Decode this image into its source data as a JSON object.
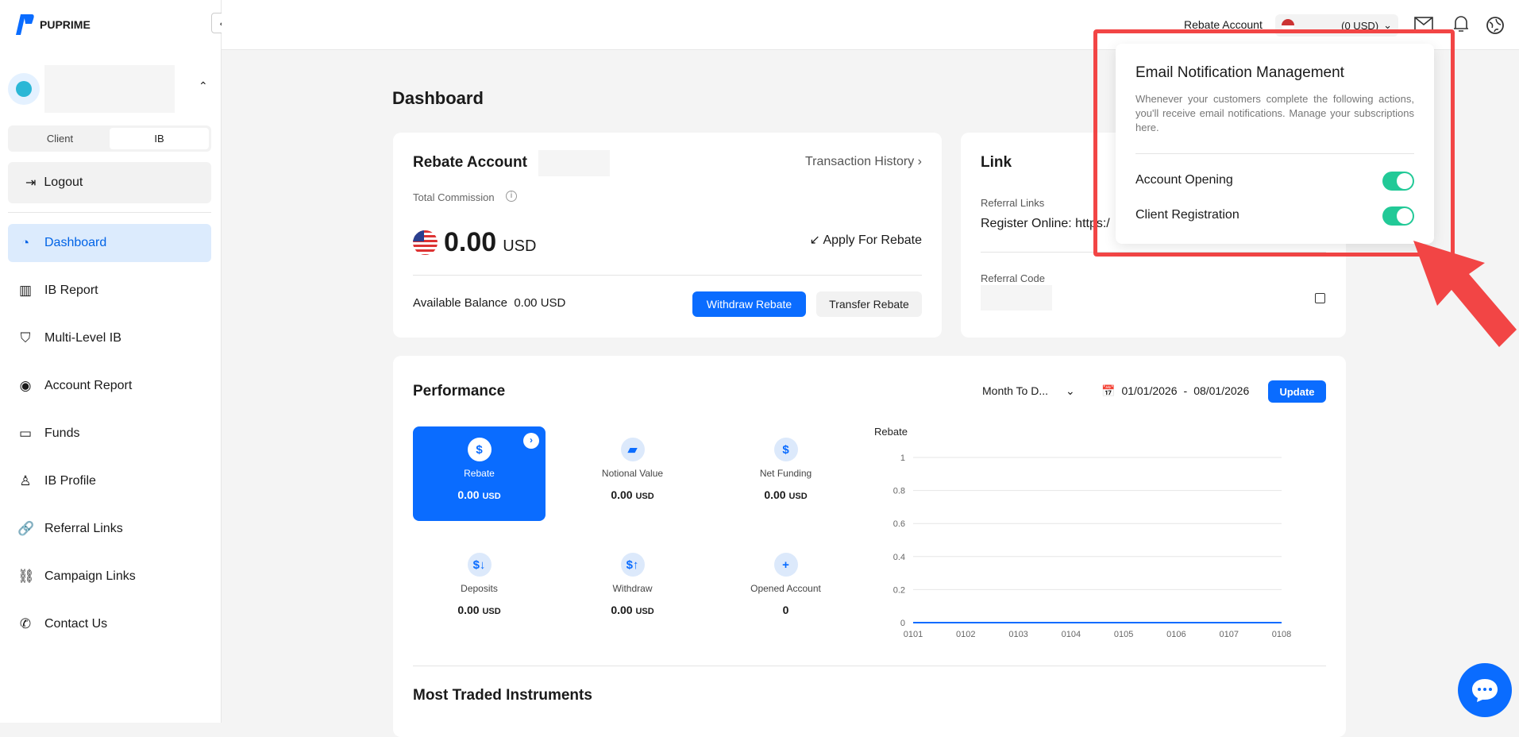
{
  "brand": {
    "name": "PUPRIME"
  },
  "sidebar": {
    "tabs": [
      {
        "label": "Client"
      },
      {
        "label": "IB",
        "active": true
      }
    ],
    "logout": "Logout",
    "items": [
      {
        "label": "Dashboard",
        "icon": "dashboard-icon",
        "active": true
      },
      {
        "label": "IB Report",
        "icon": "bar-chart-icon"
      },
      {
        "label": "Multi-Level IB",
        "icon": "hierarchy-icon"
      },
      {
        "label": "Account Report",
        "icon": "user-circle-icon"
      },
      {
        "label": "Funds",
        "icon": "wallet-icon"
      },
      {
        "label": "IB Profile",
        "icon": "user-icon"
      },
      {
        "label": "Referral Links",
        "icon": "link-icon"
      },
      {
        "label": "Campaign Links",
        "icon": "broken-link-icon"
      },
      {
        "label": "Contact Us",
        "icon": "phone-icon"
      }
    ]
  },
  "header": {
    "account_label": "Rebate Account",
    "account_value": "(0 USD)"
  },
  "page": {
    "title": "Dashboard"
  },
  "rebate": {
    "title": "Rebate Account",
    "history": "Transaction History",
    "total_label": "Total Commission",
    "amount": "0.00",
    "currency": "USD",
    "apply": "Apply For Rebate",
    "balance_label": "Available Balance",
    "balance_value": "0.00 USD",
    "withdraw": "Withdraw Rebate",
    "transfer": "Transfer Rebate"
  },
  "link": {
    "title": "Link",
    "referral_links_label": "Referral Links",
    "register_online": "Register Online: https:/",
    "referral_code_label": "Referral Code"
  },
  "performance": {
    "title": "Performance",
    "range_select": "Month To D...",
    "date_from": "01/01/2026",
    "date_sep": "-",
    "date_to": "08/01/2026",
    "update": "Update",
    "tiles": [
      {
        "label": "Rebate",
        "value": "0.00",
        "unit": "USD"
      },
      {
        "label": "Notional Value",
        "value": "0.00",
        "unit": "USD"
      },
      {
        "label": "Net Funding",
        "value": "0.00",
        "unit": "USD"
      },
      {
        "label": "Deposits",
        "value": "0.00",
        "unit": "USD"
      },
      {
        "label": "Withdraw",
        "value": "0.00",
        "unit": "USD"
      },
      {
        "label": "Opened Account",
        "value": "0",
        "unit": ""
      }
    ],
    "most_traded": "Most Traded Instruments"
  },
  "chart_data": {
    "type": "line",
    "title": "Rebate",
    "categories": [
      "0101",
      "0102",
      "0103",
      "0104",
      "0105",
      "0106",
      "0107",
      "0108"
    ],
    "values": [
      0,
      0,
      0,
      0,
      0,
      0,
      0,
      0
    ],
    "ylim": [
      0,
      1
    ],
    "yticks": [
      "0",
      "0.2",
      "0.4",
      "0.6",
      "0.8",
      "1"
    ],
    "grid": true,
    "color": "#0a6cff"
  },
  "popup": {
    "title": "Email Notification Management",
    "description": "Whenever your customers complete the following actions, you'll receive email notifications. Manage your subscriptions here.",
    "options": [
      {
        "label": "Account Opening",
        "enabled": true
      },
      {
        "label": "Client Registration",
        "enabled": true
      }
    ]
  },
  "colors": {
    "accent": "#0a6cff",
    "toggle_on": "#22c997",
    "highlight": "#f24545"
  }
}
